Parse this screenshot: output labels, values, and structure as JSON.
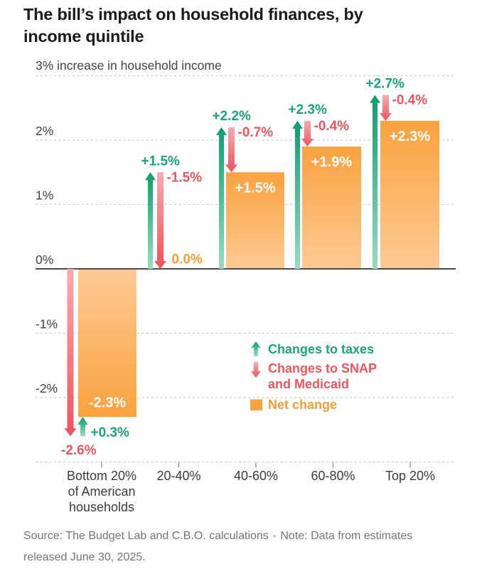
{
  "page": {
    "title": "The bill’s impact on household finances, by income quintile",
    "source_prefix": "Source: The Budget Lab and C.B.O. calculations",
    "separator": "•",
    "note_line1": "Note: Data from",
    "note_line2": "estimates released June 30, 2025."
  },
  "colors": {
    "green": "#17a77c",
    "green_dark": "#0b9e6f",
    "green_light": "#97dcc1",
    "red": "#f4535c",
    "red_dark": "#f2515a",
    "red_light": "#f9abb0",
    "orange": "#f89c35",
    "bar_strong": "#f9a23d",
    "bar_light": "#fdca94",
    "axis_text": "#424242",
    "category_text": "#3b3b3b",
    "title_text": "#1a1a1a",
    "source_text": "#757575",
    "gridline": "#cdcdcd",
    "zero_line": "#4a4a4a",
    "tick": "#8f8f8f",
    "white": "#ffffff"
  },
  "chart_data": {
    "type": "bar",
    "title": "The bill’s impact on household finances, by income quintile",
    "unit_label": "3% increase in household income",
    "categories": [
      "Bottom 20% of American households",
      "20-40%",
      "40-60%",
      "60-80%",
      "Top 20%"
    ],
    "category_lines": [
      [
        "Bottom 20%",
        "of American",
        "households"
      ],
      [
        "20-40%"
      ],
      [
        "40-60%"
      ],
      [
        "60-80%"
      ],
      [
        "Top 20%"
      ]
    ],
    "series": [
      {
        "name": "Changes to taxes",
        "values": [
          0.3,
          1.5,
          2.2,
          2.3,
          2.7
        ],
        "labels": [
          "+0.3%",
          "+1.5%",
          "+2.2%",
          "+2.3%",
          "+2.7%"
        ]
      },
      {
        "name": "Changes to SNAP and Medicaid",
        "values": [
          -2.6,
          -1.5,
          -0.7,
          -0.4,
          -0.4
        ],
        "labels": [
          "-2.6%",
          "-1.5%",
          "-0.7%",
          "-0.4%",
          "-0.4%"
        ]
      },
      {
        "name": "Net change",
        "values": [
          -2.3,
          0.0,
          1.5,
          1.9,
          2.3
        ],
        "labels": [
          "-2.3%",
          "0.0%",
          "+1.5%",
          "+1.9%",
          "+2.3%"
        ]
      }
    ],
    "legend": [
      {
        "icon": "up-arrow",
        "lines": [
          "Changes to taxes"
        ]
      },
      {
        "icon": "down-arrow",
        "lines": [
          "Changes to SNAP",
          "and Medicaid"
        ]
      },
      {
        "icon": "square",
        "lines": [
          "Net change"
        ]
      }
    ],
    "ylim": [
      -3,
      3
    ],
    "ytick_labels": [
      "2%",
      "1%",
      "0%",
      "-1%",
      "-2%"
    ],
    "ytick_values": [
      2,
      1,
      0,
      -1,
      -2
    ],
    "grid": "horizontal-dashed",
    "legend_position": "inside-lower-right"
  }
}
